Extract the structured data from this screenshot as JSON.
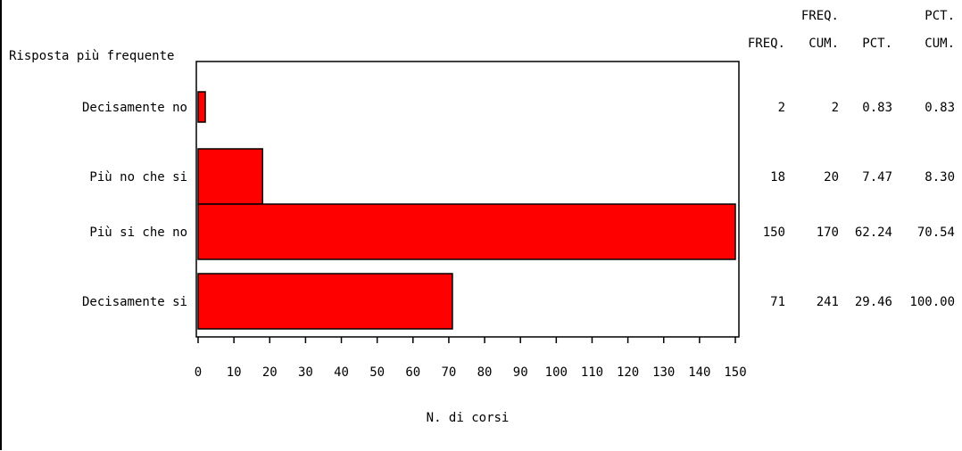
{
  "chart_data": {
    "type": "bar",
    "orientation": "horizontal",
    "category_axis_title": "Risposta più frequente",
    "xlabel": "N. di corsi",
    "categories": [
      "Decisamente no",
      "Più no che si",
      "Più si che no",
      "Decisamente si"
    ],
    "values": [
      2,
      18,
      150,
      71
    ],
    "xlim": [
      0,
      150
    ],
    "xticks": [
      0,
      10,
      20,
      30,
      40,
      50,
      60,
      70,
      80,
      90,
      100,
      110,
      120,
      130,
      140,
      150
    ],
    "bar_color": "#ff0000",
    "grid": false,
    "table": {
      "columns": [
        [
          "",
          "FREQ."
        ],
        [
          "FREQ.",
          "CUM."
        ],
        [
          "",
          "PCT."
        ],
        [
          "PCT.",
          "CUM."
        ]
      ],
      "rows": [
        [
          "2",
          "2",
          "0.83",
          "0.83"
        ],
        [
          "18",
          "20",
          "7.47",
          "8.30"
        ],
        [
          "150",
          "170",
          "62.24",
          "70.54"
        ],
        [
          "71",
          "241",
          "29.46",
          "100.00"
        ]
      ]
    }
  }
}
